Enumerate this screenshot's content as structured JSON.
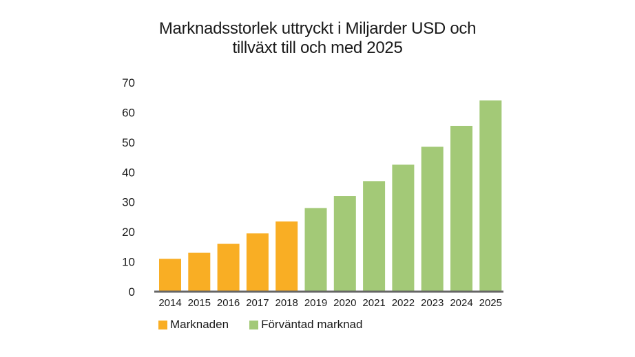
{
  "chart_data": {
    "type": "bar",
    "title": [
      "Marknadsstorlek uttryckt i Miljarder USD och",
      "tillväxt till och med 2025"
    ],
    "categories": [
      "2014",
      "2015",
      "2016",
      "2017",
      "2018",
      "2019",
      "2020",
      "2021",
      "2022",
      "2023",
      "2024",
      "2025"
    ],
    "values": [
      11,
      13,
      16,
      19.5,
      23.5,
      28,
      32,
      37,
      42.5,
      48.5,
      55.5,
      64
    ],
    "series_index": [
      0,
      0,
      0,
      0,
      0,
      1,
      1,
      1,
      1,
      1,
      1,
      1
    ],
    "series": [
      {
        "name": "Marknaden",
        "color": "#F9AE24"
      },
      {
        "name": "Förväntad marknad",
        "color": "#A3C977"
      }
    ],
    "yticks": [
      0,
      10,
      20,
      30,
      40,
      50,
      60,
      70
    ],
    "ylim": [
      0,
      70
    ],
    "grid": false,
    "legend_position": "bottom-left",
    "axis_color": "#666666"
  }
}
